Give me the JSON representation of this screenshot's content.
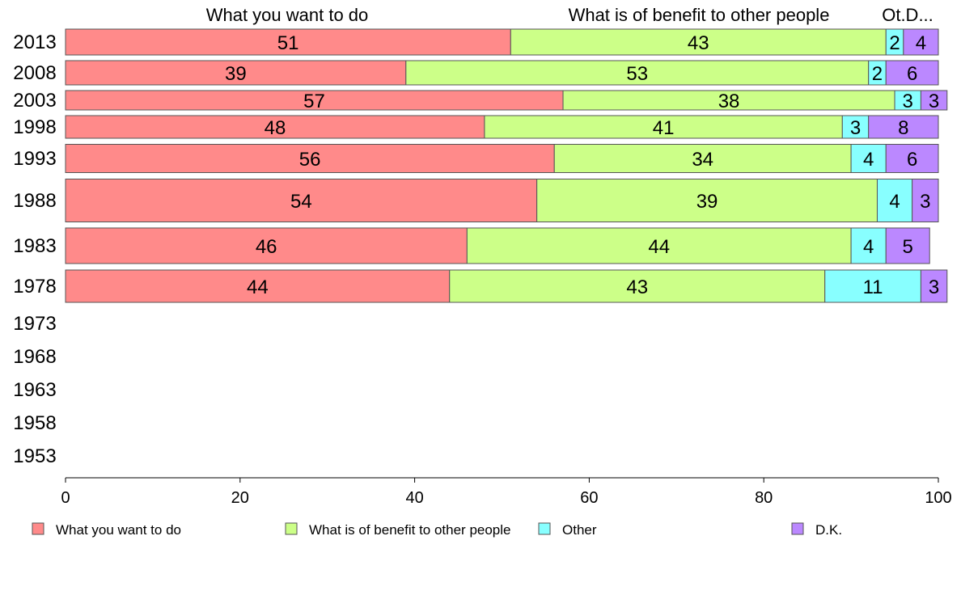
{
  "chart_data": {
    "type": "bar",
    "orientation": "horizontal",
    "stacked": true,
    "categories": [
      "2013",
      "2008",
      "2003",
      "1998",
      "1993",
      "1988",
      "1983",
      "1978",
      "1973",
      "1968",
      "1963",
      "1958",
      "1953"
    ],
    "series": [
      {
        "name": "What you want to do",
        "color": "#ff8a8a",
        "values": [
          51,
          39,
          57,
          48,
          56,
          54,
          46,
          44,
          null,
          null,
          null,
          null,
          null
        ]
      },
      {
        "name": "What is of benefit to other people",
        "color": "#ccff88",
        "values": [
          43,
          53,
          38,
          41,
          34,
          39,
          44,
          43,
          null,
          null,
          null,
          null,
          null
        ]
      },
      {
        "name": "Other",
        "color": "#88ffff",
        "values": [
          2,
          2,
          3,
          3,
          4,
          4,
          4,
          11,
          null,
          null,
          null,
          null,
          null
        ]
      },
      {
        "name": "D.K.",
        "color": "#bb88ff",
        "values": [
          4,
          6,
          3,
          8,
          6,
          3,
          5,
          3,
          null,
          null,
          null,
          null,
          null
        ]
      }
    ],
    "header_labels": [
      "What you want to do",
      "What is of benefit to other people",
      "Ot.D..."
    ],
    "xlim": [
      0,
      100
    ],
    "xticks": [
      0,
      20,
      40,
      60,
      80,
      100
    ],
    "legend_position": "bottom",
    "grid": false
  }
}
